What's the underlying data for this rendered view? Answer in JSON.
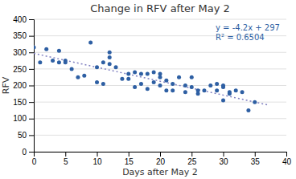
{
  "chart_data": {
    "type": "scatter",
    "title": "Change in RFV  after May 2",
    "x_label": "Days after May 2",
    "y_label": "RFV",
    "xlim": [
      0,
      40
    ],
    "ylim": [
      0,
      400
    ],
    "xticks": [
      0,
      5,
      10,
      15,
      20,
      25,
      30,
      35,
      40
    ],
    "yticks": [
      0,
      50,
      100,
      150,
      200,
      250,
      300,
      350,
      400
    ],
    "grid": "y",
    "series": [
      {
        "type": "scatter",
        "marker": "circle",
        "color": "#2e5fa3",
        "x": [
          0,
          1,
          2,
          3,
          4,
          4,
          5,
          5,
          6,
          7,
          8,
          9,
          10,
          10,
          11,
          11,
          12,
          12,
          12,
          13,
          14,
          15,
          15,
          16,
          16,
          17,
          17,
          18,
          18,
          19,
          19,
          20,
          20,
          20,
          21,
          21,
          22,
          22,
          23,
          24,
          24,
          25,
          25,
          26,
          26,
          27,
          28,
          29,
          29,
          30,
          30,
          30,
          31,
          31,
          32,
          33,
          34,
          35
        ],
        "values": [
          315,
          270,
          310,
          275,
          270,
          305,
          275,
          270,
          250,
          225,
          230,
          330,
          210,
          255,
          205,
          270,
          265,
          285,
          300,
          255,
          220,
          220,
          235,
          240,
          195,
          235,
          205,
          235,
          190,
          210,
          240,
          200,
          235,
          225,
          215,
          185,
          205,
          185,
          225,
          200,
          180,
          195,
          225,
          175,
          185,
          185,
          200,
          185,
          205,
          155,
          195,
          200,
          180,
          175,
          185,
          180,
          125,
          150
        ]
      },
      {
        "type": "line",
        "line_style": "dotted",
        "color": "#8080c0",
        "x": [
          0,
          37
        ],
        "values": [
          297,
          141.6
        ]
      }
    ],
    "annotations": [
      "y = -4.2x + 297",
      "R² = 0.6504"
    ]
  }
}
